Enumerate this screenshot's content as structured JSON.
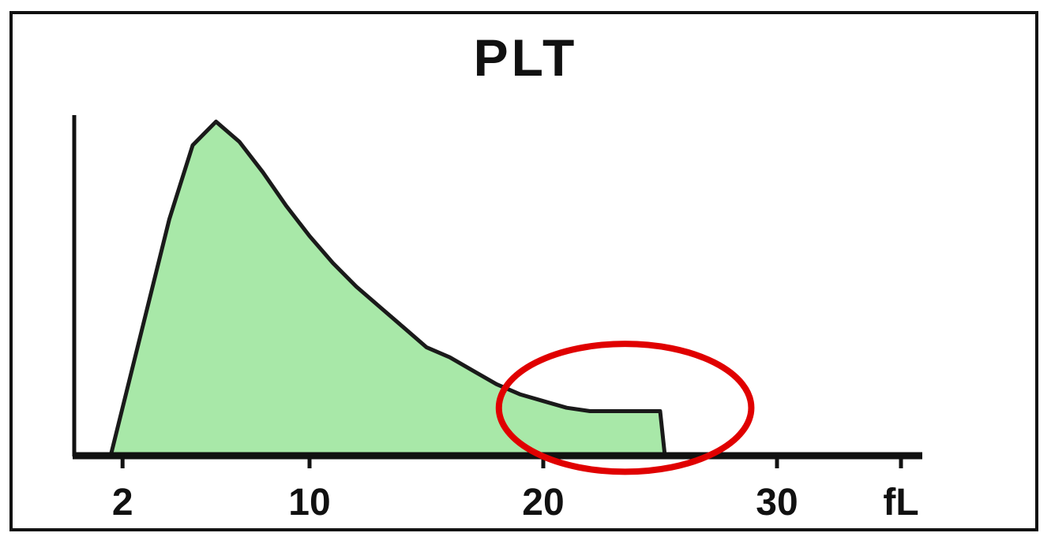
{
  "chart_data": {
    "type": "area",
    "title": "PLT",
    "xlabel": "",
    "ylabel": "",
    "xlim": [
      0,
      33
    ],
    "ylim": [
      0,
      100
    ],
    "x_ticks": [
      2,
      10,
      20,
      30
    ],
    "x_tick_labels": [
      "2",
      "10",
      "20",
      "30"
    ],
    "x_unit": "fL",
    "grid": false,
    "legend": "none",
    "series": [
      {
        "x": [
          1.5,
          2,
          3,
          4,
          5,
          6,
          7,
          8,
          9,
          10,
          11,
          12,
          13,
          14,
          15,
          16,
          17,
          18,
          19,
          20,
          21,
          22,
          23,
          24,
          25,
          25.2
        ],
        "values": [
          0,
          14,
          42,
          70,
          92,
          99,
          93,
          84,
          74,
          65,
          57,
          50,
          44,
          38,
          32,
          29,
          25,
          21,
          18,
          16,
          14,
          13,
          13,
          13,
          13,
          0
        ],
        "fill": "#a8e8a8",
        "stroke": "#1a1a1a"
      }
    ],
    "annotation": {
      "shape": "ellipse",
      "color": "#e00000",
      "x_center": 23.5,
      "y_center": 14,
      "x_radius": 5.4,
      "y_radius": 19
    }
  }
}
